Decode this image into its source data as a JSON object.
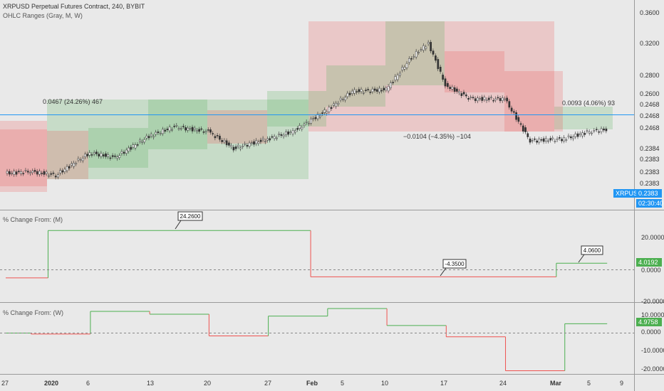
{
  "header": {
    "symbol_title": "XRPUSD Perpetual Futures Contract, 240, BYBIT",
    "indicator_label": "OHLC Ranges (Gray, M, W)"
  },
  "annotations": {
    "jan_range": "0.0467 (24.26%) 467",
    "feb_range": "−0.0104 (−4.35%) −104",
    "mar_range": "0.0093 (4.06%) 93"
  },
  "price_axis": {
    "ticks": [
      "0.3600",
      "0.3200",
      "0.2800",
      "0.2600",
      "0.2468",
      "0.2468",
      "0.2468",
      "0.2384",
      "0.2383",
      "0.2383",
      "0.2383"
    ],
    "symbol_tag": "XRPUSD",
    "last_price": "0.2383",
    "countdown": "02:30:40"
  },
  "pane_m": {
    "title": "% Change From: (M)",
    "ticks": [
      "20.0000",
      "0.0000",
      "-20.0000"
    ],
    "current_value": "4.0192",
    "callouts": [
      "24.2600",
      "-4.3500",
      "4.0600"
    ]
  },
  "pane_w": {
    "title": "% Change From: (W)",
    "ticks": [
      "10.0000",
      "0.0000",
      "-10.0000",
      "-20.0000"
    ],
    "current_value": "4.9758"
  },
  "time_axis": {
    "labels": [
      "27",
      "2020",
      "6",
      "13",
      "20",
      "27",
      "Feb",
      "5",
      "10",
      "17",
      "24",
      "Mar",
      "5",
      "9"
    ]
  },
  "colors": {
    "background": "#e9e9e9",
    "up": "#4caf50",
    "down": "#ef5350",
    "price_line": "#2196f3",
    "up_box": "rgba(76,175,80,0.22)",
    "down_box": "rgba(239,83,80,0.22)"
  },
  "chart_data": [
    {
      "type": "line",
      "title": "XRPUSD Perpetual Futures Contract, 240, BYBIT",
      "series": [
        {
          "x": [
            "2019-12-27",
            "2019-12-30",
            "2020-01-02",
            "2020-01-06",
            "2020-01-09",
            "2020-01-13",
            "2020-01-16",
            "2020-01-20",
            "2020-01-23",
            "2020-01-27",
            "2020-01-30",
            "2020-02-03",
            "2020-02-06",
            "2020-02-10",
            "2020-02-13",
            "2020-02-15",
            "2020-02-17",
            "2020-02-20",
            "2020-02-24",
            "2020-02-27",
            "2020-03-02",
            "2020-03-05",
            "2020-03-07"
          ],
          "values": [
            0.195,
            0.197,
            0.193,
            0.217,
            0.212,
            0.235,
            0.245,
            0.24,
            0.222,
            0.232,
            0.24,
            0.263,
            0.283,
            0.285,
            0.32,
            0.335,
            0.29,
            0.275,
            0.275,
            0.23,
            0.232,
            0.24,
            0.242
          ]
        }
      ],
      "xlabel": "",
      "ylabel": "",
      "ylim": [
        0.175,
        0.37
      ]
    },
    {
      "type": "line",
      "title": "% Change From: (M)",
      "series": [
        {
          "x": [
            "2019-12-27",
            "2020-01-01",
            "2020-02-01",
            "2020-03-01",
            "2020-03-07"
          ],
          "values": [
            -5.0,
            24.26,
            -4.35,
            4.06,
            4.0192
          ]
        }
      ],
      "ylim": [
        -25,
        30
      ]
    },
    {
      "type": "line",
      "title": "% Change From: (W)",
      "series": [
        {
          "x": [
            "2019-12-27",
            "2019-12-30",
            "2020-01-06",
            "2020-01-13",
            "2020-01-20",
            "2020-01-27",
            "2020-02-03",
            "2020-02-10",
            "2020-02-17",
            "2020-02-24",
            "2020-03-02",
            "2020-03-07"
          ],
          "values": [
            0.0,
            -0.5,
            11.5,
            10.0,
            -1.5,
            9.0,
            13.0,
            4.0,
            -2.0,
            -20.0,
            4.9758,
            4.9758
          ]
        }
      ],
      "ylim": [
        -25,
        15
      ]
    }
  ]
}
